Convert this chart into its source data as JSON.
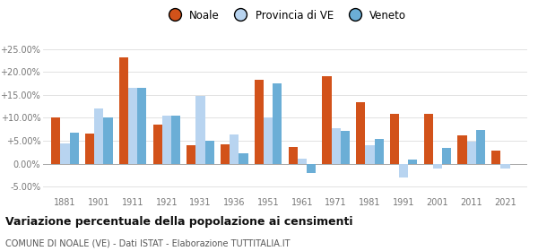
{
  "years": [
    1881,
    1901,
    1911,
    1921,
    1931,
    1936,
    1951,
    1961,
    1971,
    1981,
    1991,
    2001,
    2011,
    2021
  ],
  "noale": [
    10.0,
    6.5,
    23.2,
    8.5,
    4.0,
    4.2,
    18.2,
    3.7,
    19.0,
    13.4,
    10.8,
    10.8,
    6.1,
    2.8
  ],
  "provincia": [
    4.5,
    12.0,
    16.5,
    10.5,
    14.8,
    6.3,
    10.0,
    1.0,
    7.8,
    4.0,
    -3.0,
    -1.0,
    4.8,
    -1.0
  ],
  "veneto": [
    6.8,
    10.0,
    16.5,
    10.5,
    5.0,
    2.2,
    17.5,
    -2.0,
    7.2,
    5.3,
    0.8,
    3.5,
    7.3,
    null
  ],
  "noale_color": "#d2521a",
  "provincia_color": "#b8d4f0",
  "veneto_color": "#6baed6",
  "legend_labels": [
    "Noale",
    "Provincia di VE",
    "Veneto"
  ],
  "title": "Variazione percentuale della popolazione ai censimenti",
  "subtitle": "COMUNE DI NOALE (VE) - Dati ISTAT - Elaborazione TUTTITALIA.IT",
  "yticks": [
    -5.0,
    0.0,
    5.0,
    10.0,
    15.0,
    20.0,
    25.0
  ],
  "ylim": [
    -7,
    28
  ],
  "bar_width": 0.27
}
